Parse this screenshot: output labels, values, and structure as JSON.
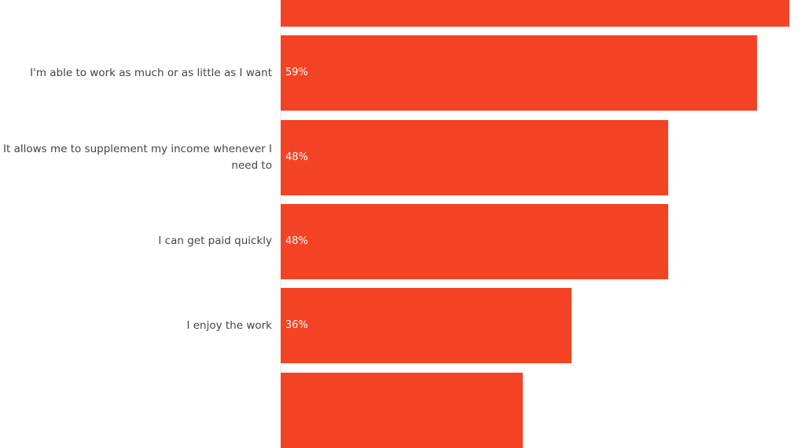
{
  "chart_data": {
    "type": "bar",
    "orientation": "horizontal",
    "categories": [
      "",
      "I'm able to work as much or as little as I want",
      "It allows me to supplement my income whenever I need to",
      "I can get paid quickly",
      "I enjoy the work",
      ""
    ],
    "values": [
      63,
      59,
      48,
      48,
      36,
      30
    ],
    "data_labels": [
      "",
      "59%",
      "48%",
      "48%",
      "36%",
      ""
    ],
    "xlim": [
      0,
      64
    ],
    "grid": false,
    "bar_color": "#f44324",
    "label_color": "#444444"
  }
}
